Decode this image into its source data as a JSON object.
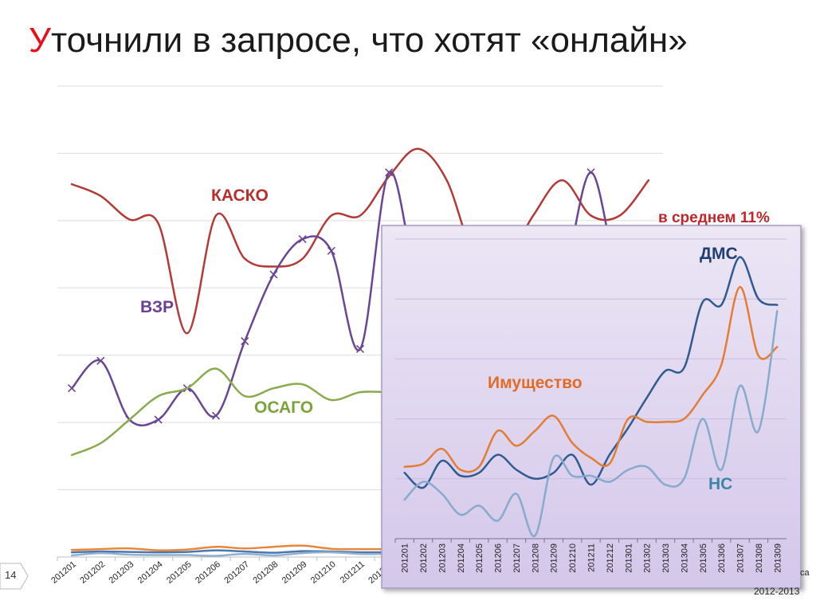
{
  "slide": {
    "title_first_letter": "У",
    "title_rest": "точнили в запросе, что хотят «онлайн»",
    "page_number": "14",
    "source_line1": "са",
    "source_line2": "2012-2013"
  },
  "chart_data": [
    {
      "type": "line",
      "categories": [
        "201201",
        "201202",
        "201203",
        "201204",
        "201205",
        "201206",
        "201207",
        "201208",
        "201209",
        "201210",
        "201211",
        "201212",
        "201301",
        "201302",
        "201303",
        "201304",
        "201305",
        "201306",
        "201307",
        "201308",
        "201309"
      ],
      "series": [
        {
          "name": "КАСКО",
          "color": "#b23a37",
          "values": [
            0.95,
            0.92,
            0.86,
            0.85,
            0.57,
            0.87,
            0.76,
            0.74,
            0.76,
            0.87,
            0.87,
            0.97,
            1.04,
            0.96,
            0.76,
            0.75,
            0.87,
            0.96,
            0.87,
            0.87,
            0.96
          ]
        },
        {
          "name": "ВЗР",
          "color": "#6b4592",
          "values": [
            0.43,
            0.5,
            0.35,
            0.35,
            0.43,
            0.36,
            0.55,
            0.72,
            0.81,
            0.78,
            0.53,
            0.98,
            0.7,
            0.7,
            0.7,
            0.7,
            0.7,
            0.7,
            0.98,
            0.7,
            0.7
          ]
        },
        {
          "name": "ОСАГО",
          "color": "#88ab4e",
          "values": [
            0.26,
            0.29,
            0.35,
            0.41,
            0.43,
            0.48,
            0.41,
            0.43,
            0.44,
            0.4,
            0.42,
            0.42,
            0.42,
            0.42,
            0.42,
            0.42,
            0.42,
            0.42,
            0.42,
            0.42,
            0.42
          ]
        },
        {
          "name": "",
          "color": "#e8863a",
          "values": [
            0.018,
            0.02,
            0.022,
            0.017,
            0.019,
            0.026,
            0.022,
            0.026,
            0.029,
            0.021,
            0.02,
            0.02,
            0.02,
            0.02,
            0.02,
            0.02,
            0.02,
            0.02,
            0.02,
            0.02,
            0.02
          ]
        },
        {
          "name": "",
          "color": "#4a78ae",
          "values": [
            0.012,
            0.014,
            0.013,
            0.012,
            0.013,
            0.017,
            0.014,
            0.011,
            0.015,
            0.014,
            0.012,
            0.012,
            0.012,
            0.012,
            0.012,
            0.012,
            0.012,
            0.012,
            0.012,
            0.012,
            0.012
          ]
        },
        {
          "name": "",
          "color": "#8fb0d2",
          "values": [
            0.004,
            0.01,
            0.006,
            0.005,
            0.005,
            0.003,
            0.008,
            0.004,
            0.01,
            0.012,
            0.008,
            0.008,
            0.008,
            0.008,
            0.008,
            0.008,
            0.008,
            0.008,
            0.008,
            0.008,
            0.008
          ]
        }
      ],
      "ylim": [
        0,
        1.2
      ],
      "grid": true,
      "labels": {
        "kasko": "КАСКО",
        "vzr": "ВЗР",
        "osago": "ОСАГО",
        "average": "в среднем 11%"
      }
    },
    {
      "type": "line",
      "categories": [
        "201201",
        "201202",
        "201203",
        "201204",
        "201205",
        "201206",
        "201207",
        "201208",
        "201209",
        "201210",
        "201211",
        "201212",
        "201301",
        "201302",
        "201303",
        "201304",
        "201305",
        "201306",
        "201307",
        "201308",
        "201309"
      ],
      "series": [
        {
          "name": "ДМС",
          "color": "#2f5b91",
          "values": [
            0.22,
            0.17,
            0.26,
            0.21,
            0.22,
            0.28,
            0.23,
            0.2,
            0.22,
            0.28,
            0.18,
            0.28,
            0.37,
            0.47,
            0.56,
            0.57,
            0.79,
            0.78,
            0.94,
            0.8,
            0.78
          ]
        },
        {
          "name": "Имущество",
          "color": "#e47d34",
          "values": [
            0.24,
            0.25,
            0.3,
            0.23,
            0.24,
            0.36,
            0.31,
            0.36,
            0.41,
            0.32,
            0.27,
            0.25,
            0.4,
            0.39,
            0.39,
            0.4,
            0.48,
            0.58,
            0.84,
            0.61,
            0.64
          ]
        },
        {
          "name": "НС",
          "color": "#88aacc",
          "values": [
            0.13,
            0.19,
            0.15,
            0.08,
            0.11,
            0.06,
            0.15,
            0.01,
            0.27,
            0.21,
            0.21,
            0.19,
            0.23,
            0.24,
            0.18,
            0.2,
            0.4,
            0.23,
            0.51,
            0.36,
            0.76
          ]
        }
      ],
      "ylim": [
        0,
        1.0
      ],
      "grid": true,
      "labels": {
        "dms": "ДМС",
        "property": "Имущество",
        "ns": "НС"
      }
    }
  ]
}
